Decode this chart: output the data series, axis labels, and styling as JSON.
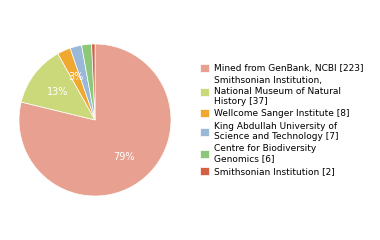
{
  "labels": [
    "Mined from GenBank, NCBI [223]",
    "Smithsonian Institution,\nNational Museum of Natural\nHistory [37]",
    "Wellcome Sanger Institute [8]",
    "King Abdullah University of\nScience and Technology [7]",
    "Centre for Biodiversity\nGenomics [6]",
    "Smithsonian Institution [2]"
  ],
  "values": [
    223,
    37,
    8,
    7,
    6,
    2
  ],
  "colors": [
    "#e8a090",
    "#ccd97a",
    "#f0a830",
    "#9ab8d8",
    "#8dc87a",
    "#d45f45"
  ],
  "autopct_fontsize": 7,
  "legend_fontsize": 6.5,
  "figsize": [
    3.8,
    2.4
  ],
  "dpi": 100,
  "bg_color": "#ffffff"
}
